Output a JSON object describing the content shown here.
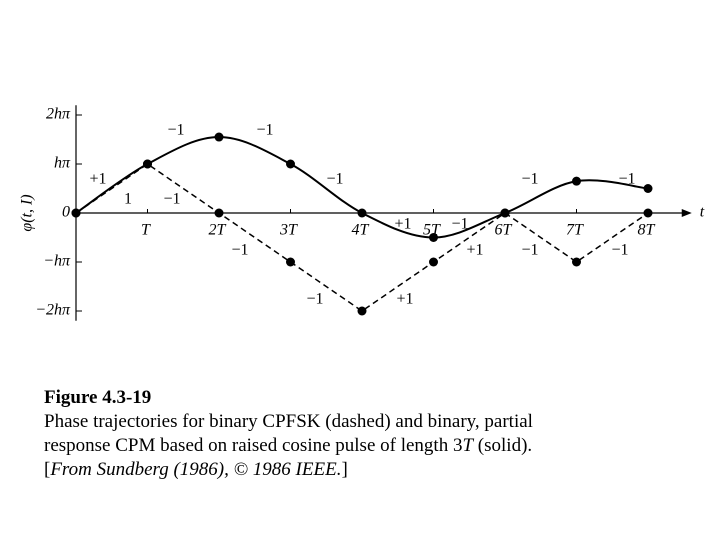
{
  "chart_data": {
    "type": "line",
    "x": [
      0,
      1,
      2,
      3,
      4,
      5,
      6,
      7,
      8
    ],
    "series": [
      {
        "name": "CPFSK",
        "color": "#000000",
        "dashed": true,
        "smooth": false,
        "values": [
          0,
          1,
          0,
          -1,
          -2,
          -1,
          0,
          -1,
          0
        ]
      },
      {
        "name": "CPM",
        "color": "#000000",
        "dashed": false,
        "smooth": true,
        "values": [
          0,
          1,
          1.55,
          1,
          0,
          -0.5,
          0,
          0.65,
          0.5
        ]
      }
    ],
    "xlim": [
      0,
      8.5
    ],
    "ylim": [
      -2.2,
      2.2
    ],
    "xticks": [
      {
        "value": 1,
        "label": "T"
      },
      {
        "value": 2,
        "label": "2T"
      },
      {
        "value": 3,
        "label": "3T"
      },
      {
        "value": 4,
        "label": "4T"
      },
      {
        "value": 5,
        "label": "5T"
      },
      {
        "value": 6,
        "label": "6T"
      },
      {
        "value": 7,
        "label": "7T"
      },
      {
        "value": 8,
        "label": "8T"
      }
    ],
    "yticks": [
      {
        "value": -2,
        "label": "−2hπ"
      },
      {
        "value": -1,
        "label": "−hπ"
      },
      0,
      {
        "value": 1,
        "label": "hπ"
      },
      {
        "value": 2,
        "label": "2hπ"
      }
    ],
    "xlabel": "t",
    "ylabel": "φ(t, I)",
    "annotations": [
      "+1",
      "1",
      "−1",
      "−1",
      "−1",
      "−1",
      "−1",
      "−1",
      "+1",
      "+1",
      "−1",
      "+1",
      "−1",
      "−1",
      "−1",
      "−1"
    ],
    "caption_label": "Figure 4.3-19",
    "caption": [
      "Phase trajectories for binary CPFSK (dashed) and binary, partial",
      "response CPM based on raised cosine pulse of length 3",
      "T",
      " (solid).",
      "[",
      "From Sundberg (1986), © 1986 IEEE.",
      "]"
    ]
  }
}
